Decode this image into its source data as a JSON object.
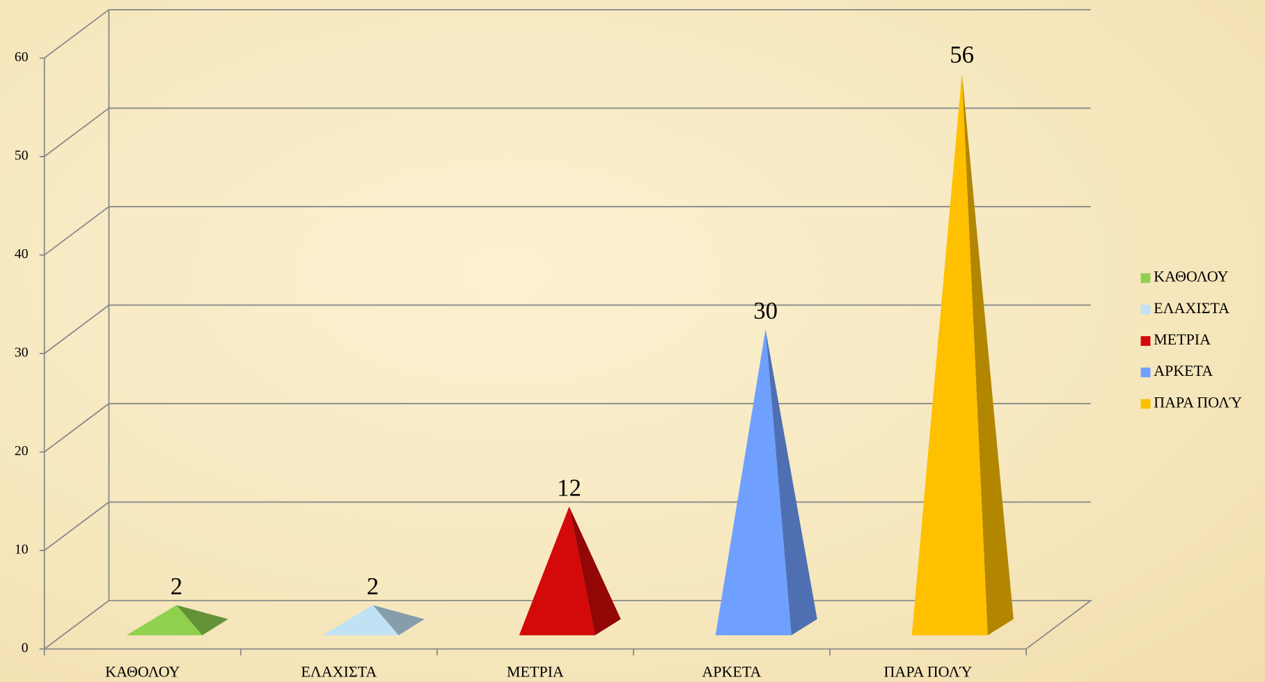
{
  "chart_data": {
    "type": "pyramid",
    "categories": [
      "ΚΑΘΟΛΟΥ",
      "ΕΛΑΧΙΣΤΑ",
      "ΜΕΤΡΙΑ",
      "ΑΡΚΕΤΑ",
      "ΠΑΡΑ ΠΟΛΎ"
    ],
    "values": [
      2,
      2,
      12,
      30,
      56
    ],
    "colors": [
      "#8fd14f",
      "#bfe2f5",
      "#d40a0a",
      "#6fa0ff",
      "#ffc000"
    ],
    "ylim": [
      0,
      60
    ],
    "yticks": [
      0,
      10,
      20,
      30,
      40,
      50,
      60
    ],
    "grid": true,
    "legend": "right"
  }
}
